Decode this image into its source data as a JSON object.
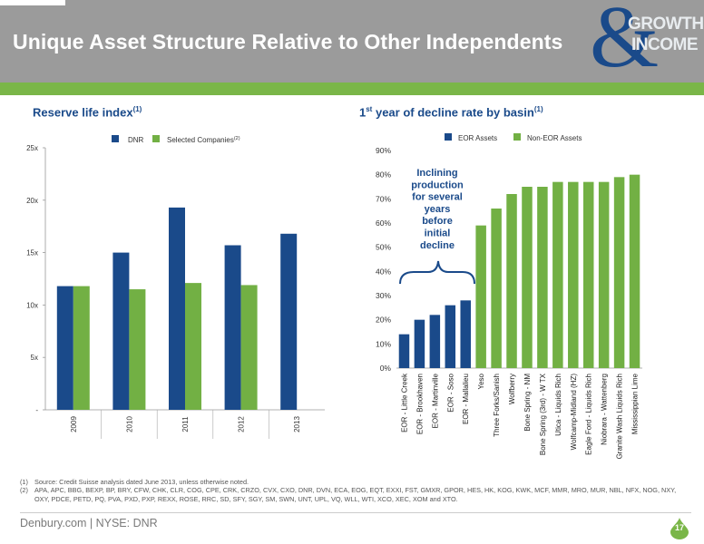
{
  "header": {
    "title": "Unique Asset Structure Relative to Other Independents",
    "logo": {
      "line1": "GROWTH",
      "line2": "INCOME"
    }
  },
  "left_section": {
    "title": "Reserve life index",
    "sup": "(1)"
  },
  "right_section": {
    "title_prefix": "1",
    "title_sup1": "st",
    "title_main": " year of decline rate by basin",
    "title_sup2": "(1)"
  },
  "annotation": {
    "lines": [
      "Inclining",
      "production",
      "for several",
      "years",
      "before",
      "initial",
      "decline"
    ]
  },
  "colors": {
    "blue": "#1a4a8a",
    "green": "#72b044"
  },
  "chart_data": [
    {
      "type": "bar",
      "categories": [
        "2009",
        "2010",
        "2011",
        "2012",
        "2013"
      ],
      "series": [
        {
          "name": "DNR",
          "values": [
            11.8,
            15.0,
            19.3,
            15.7,
            16.8
          ]
        },
        {
          "name": "Selected Companies",
          "name_sup": "(2)",
          "values": [
            11.8,
            11.5,
            12.1,
            11.9,
            null
          ]
        }
      ],
      "ylim": [
        0,
        25
      ],
      "yticks": [
        {
          "value": 0,
          "label": "-"
        },
        {
          "value": 5,
          "label": "5x"
        },
        {
          "value": 10,
          "label": "10x"
        },
        {
          "value": 15,
          "label": "15x"
        },
        {
          "value": 20,
          "label": "20x"
        },
        {
          "value": 25,
          "label": "25x"
        }
      ],
      "legend_position": "top"
    },
    {
      "type": "bar",
      "categories": [
        "EOR - Little Creek",
        "EOR - Brookhaven",
        "EOR - Martinville",
        "EOR - Soso",
        "EOR - Mallalieu",
        "Yeso",
        "Three Forks/Sanish",
        "Wolfberry",
        "Bone Spring - NM",
        "Bone Spring (3rd) - W TX",
        "Utica - Liquids Rich",
        "Wolfcamp-Midland (HZ)",
        "Eagle Ford - Liquids Rich",
        "Niobrara - Wattenberg",
        "Granite Wash Liquids Rich",
        "Mississippian Lime"
      ],
      "values": [
        14,
        20,
        22,
        26,
        28,
        59,
        66,
        72,
        75,
        75,
        77,
        77,
        77,
        77,
        79,
        80
      ],
      "groups": [
        "EOR Assets",
        "EOR Assets",
        "EOR Assets",
        "EOR Assets",
        "EOR Assets",
        "Non-EOR Assets",
        "Non-EOR Assets",
        "Non-EOR Assets",
        "Non-EOR Assets",
        "Non-EOR Assets",
        "Non-EOR Assets",
        "Non-EOR Assets",
        "Non-EOR Assets",
        "Non-EOR Assets",
        "Non-EOR Assets",
        "Non-EOR Assets"
      ],
      "legend": [
        "EOR Assets",
        "Non-EOR Assets"
      ],
      "ylim": [
        0,
        90
      ],
      "yticks": [
        "0%",
        "10%",
        "20%",
        "30%",
        "40%",
        "50%",
        "60%",
        "70%",
        "80%",
        "90%"
      ],
      "legend_position": "top"
    }
  ],
  "footnotes": [
    {
      "num": "(1)",
      "text": "Source: Credit Suisse analysis dated June 2013, unless otherwise noted."
    },
    {
      "num": "(2)",
      "text": "APA, APC, BBG, BEXP, BP, BRY, CFW, CHK, CLR, COG, CPE, CRK, CRZO, CVX, CXO, DNR, DVN, ECA, EOG, EQT, EXXI, FST, GMXR, GPOR, HES, HK, KOG, KWK, MCF, MMR, MRO, MUR, NBL, NFX, NOG, NXY, OXY, PDCE, PETD, PQ, PVA, PXD, PXP, REXX, ROSE, RRC, SD, SFY, SGY, SM, SWN, UNT, UPL, VQ, WLL, WTI, XCO, XEC, XOM and XTO."
    }
  ],
  "footer": {
    "text": "Denbury.com | NYSE: DNR",
    "page": "17"
  }
}
